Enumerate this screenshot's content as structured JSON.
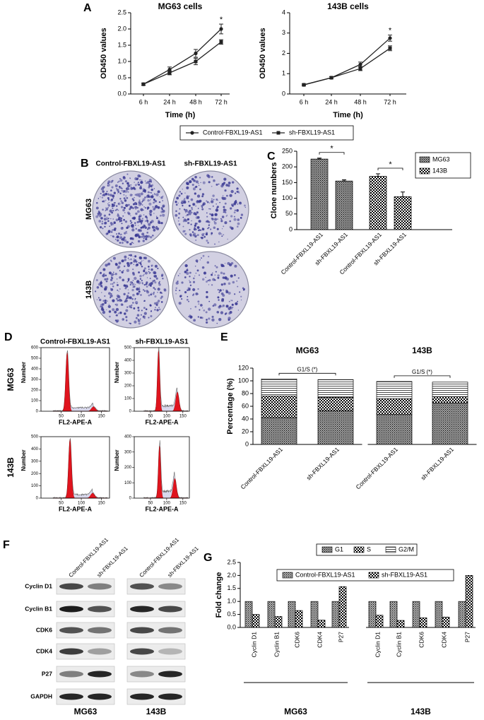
{
  "panel_labels": [
    "A",
    "B",
    "C",
    "D",
    "E",
    "F",
    "G"
  ],
  "chart_data": [
    {
      "type": "line",
      "title": "MG63 cells",
      "x_label": "Time (h)",
      "y_label": "OD450 values",
      "categories": [
        "6 h",
        "24 h",
        "48 h",
        "72 h"
      ],
      "series": [
        {
          "name": "Control-FBXL19-AS1",
          "color": "#222222",
          "marker": "circle",
          "values": [
            0.3,
            0.75,
            1.25,
            2.0
          ],
          "errors": [
            0.03,
            0.08,
            0.12,
            0.15
          ]
        },
        {
          "name": "sh-FBXL19-AS1",
          "color": "#222222",
          "marker": "square",
          "values": [
            0.3,
            0.65,
            1.0,
            1.6
          ],
          "errors": [
            0.03,
            0.06,
            0.1,
            0.07
          ]
        }
      ],
      "ylim": [
        0,
        2.5
      ],
      "yticks": [
        {
          "value": 0,
          "label": "0.0"
        },
        {
          "value": 0.5,
          "label": "0.5"
        },
        {
          "value": 1,
          "label": "1.0"
        },
        {
          "value": 1.5,
          "label": "1.5"
        },
        {
          "value": 2,
          "label": "2.0"
        },
        {
          "value": 2.5,
          "label": "2.5"
        }
      ],
      "annotation": "*",
      "legend": "bottom"
    },
    {
      "type": "line",
      "title": "143B cells",
      "x_label": "Time (h)",
      "y_label": "OD450 values",
      "categories": [
        "6 h",
        "24 h",
        "48 h",
        "72 h"
      ],
      "series": [
        {
          "name": "Control-FBXL19-AS1",
          "color": "#222222",
          "marker": "circle",
          "values": [
            0.45,
            0.8,
            1.45,
            2.75
          ],
          "errors": [
            0.04,
            0.05,
            0.12,
            0.15
          ]
        },
        {
          "name": "sh-FBXL19-AS1",
          "color": "#222222",
          "marker": "square",
          "values": [
            0.45,
            0.8,
            1.25,
            2.25
          ],
          "errors": [
            0.04,
            0.05,
            0.1,
            0.12
          ]
        }
      ],
      "ylim": [
        0,
        4
      ],
      "yticks": [
        0,
        1,
        2,
        3,
        4
      ],
      "annotation": "*"
    },
    {
      "type": "bar",
      "y_label": "Clone numbers",
      "categories": [
        "Control-FBXL19-AS1",
        "sh-FBXL19-AS1",
        "Control-FBXL19-AS1",
        "sh-FBXL19-AS1"
      ],
      "series": [
        {
          "name": "MG63",
          "color": "#9a9a9a",
          "values": [
            225,
            155,
            null,
            null
          ],
          "errors": [
            3,
            4,
            null,
            null
          ]
        },
        {
          "name": "143B",
          "color": "#ffffff",
          "values": [
            null,
            null,
            170,
            105
          ],
          "errors": [
            null,
            null,
            8,
            15
          ]
        }
      ],
      "ylim": [
        0,
        250
      ],
      "yticks": [
        0,
        50,
        100,
        150,
        200,
        250
      ],
      "annotations": [
        "*",
        "*"
      ],
      "legend": "upper right"
    },
    {
      "type": "stacked_bar",
      "y_label": "Percentage (%)",
      "groups": [
        "MG63",
        "143B"
      ],
      "categories": [
        "Control-FBXL19-AS1",
        "sh-FBXL19-AS1",
        "Control-FBXL19-AS1",
        "sh-FBXL19-AS1"
      ],
      "series": [
        {
          "name": "G1",
          "color": "#a0a0a0",
          "values": [
            42,
            53,
            47,
            65
          ]
        },
        {
          "name": "S",
          "color": "#ffffff",
          "values": [
            34,
            21,
            25,
            10
          ]
        },
        {
          "name": "G2/M",
          "color": "#ffffff",
          "values": [
            27,
            28,
            27,
            23
          ]
        }
      ],
      "ylim": [
        0,
        120
      ],
      "yticks": [
        0,
        20,
        40,
        60,
        80,
        100,
        120
      ],
      "annotations": [
        "G1/S (*)",
        "G1/S (*)"
      ],
      "legend": "bottom"
    },
    {
      "type": "grouped_bar",
      "y_label": "Fold change",
      "groups": [
        "MG63",
        "143B"
      ],
      "categories": [
        "Cyclin D1",
        "Cyclin B1",
        "CDK6",
        "CDK4",
        "P27",
        "Cyclin D1",
        "Cyclin B1",
        "CDK6",
        "CDK4",
        "P27"
      ],
      "series": [
        {
          "name": "Control-FBXL19-AS1",
          "color": "#b0b0b0",
          "values": [
            1,
            1,
            1,
            1,
            1,
            1,
            1,
            1,
            1,
            1
          ]
        },
        {
          "name": "sh-FBXL19-AS1",
          "color": "#ffffff",
          "values": [
            0.5,
            0.42,
            0.65,
            0.28,
            1.57,
            0.47,
            0.27,
            0.37,
            0.4,
            2.0
          ]
        }
      ],
      "ylim": [
        0,
        2.5
      ],
      "yticks": [
        {
          "value": 0,
          "label": "0.0"
        },
        {
          "value": 0.5,
          "label": "0.5"
        },
        {
          "value": 1,
          "label": "1.0"
        },
        {
          "value": 1.5,
          "label": "1.5"
        },
        {
          "value": 2,
          "label": "2.0"
        },
        {
          "value": 2.5,
          "label": "2.5"
        }
      ],
      "legend": "top"
    }
  ],
  "colony_assay": {
    "columns": [
      "Control-FBXL19-AS1",
      "sh-FBXL19-AS1"
    ],
    "rows": [
      "MG63",
      "143B"
    ]
  },
  "flow_cytometry": {
    "columns": [
      "Control-FBXL19-AS1",
      "sh-FBXL19-AS1"
    ],
    "rows": [
      "MG63",
      "143B"
    ],
    "y_label": "Number",
    "x_label": "FL2-APE-A",
    "xticks": [
      50,
      100,
      150
    ],
    "panels": [
      {
        "yticks": [
          0,
          100,
          200,
          300,
          400,
          500,
          600
        ]
      },
      {
        "yticks": [
          0,
          100,
          200,
          300,
          400,
          500
        ]
      },
      {
        "yticks": [
          0,
          100,
          200,
          300,
          400,
          500
        ]
      },
      {
        "yticks": [
          0,
          100,
          200,
          300,
          400
        ]
      }
    ]
  },
  "western_blot": {
    "columns": [
      "Control-FBXL19-AS1",
      "sh-FBXL19-AS1"
    ],
    "rows": [
      "Cyclin D1",
      "Cyclin B1",
      "CDK6",
      "CDK4",
      "P27",
      "GAPDH"
    ],
    "cell_lines": [
      "MG63",
      "143B"
    ]
  }
}
